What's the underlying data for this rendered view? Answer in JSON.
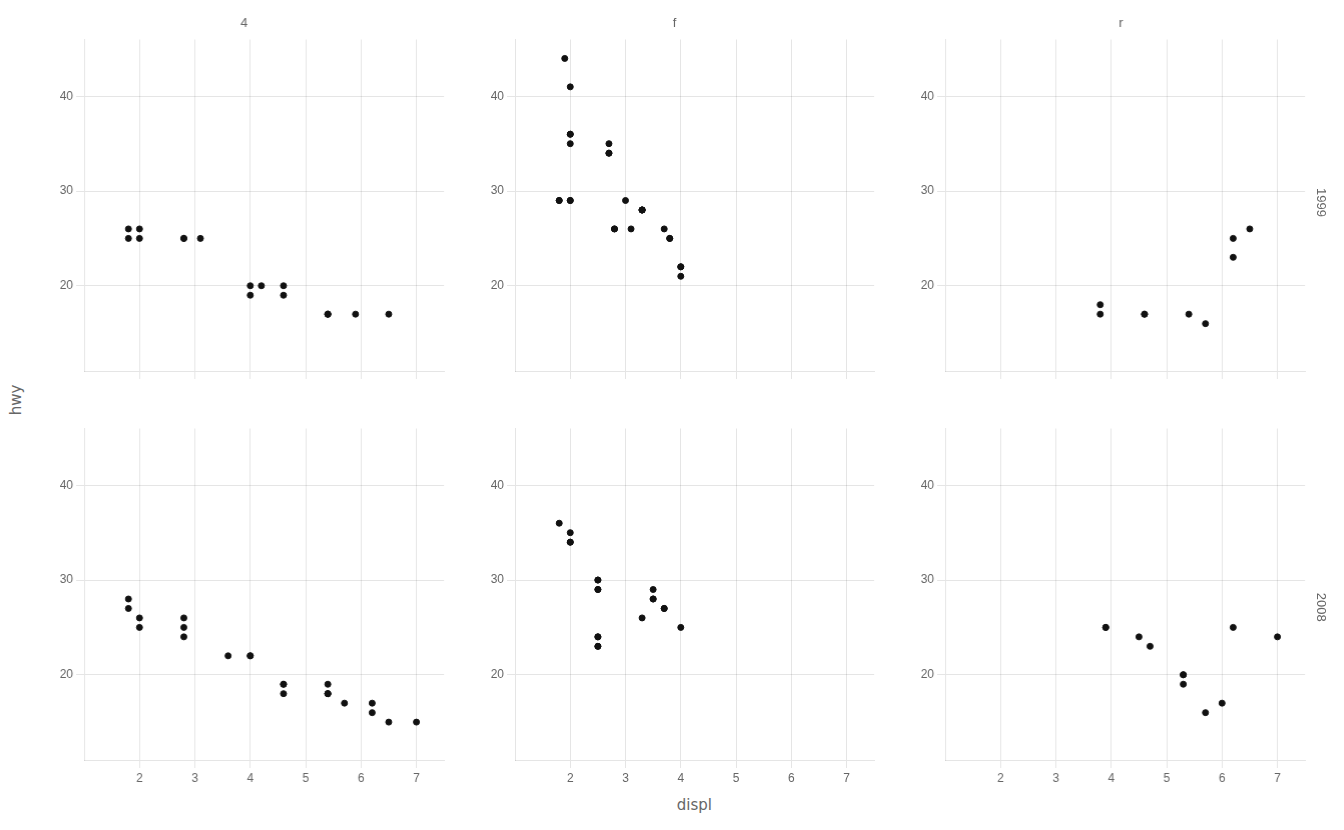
{
  "chart_data": [
    {
      "type": "scatter",
      "title": "4",
      "x": [
        1.8,
        1.8,
        2.0,
        2.0,
        2.8,
        2.8,
        3.1,
        4.2,
        5.9,
        4.0,
        4.0,
        4.6,
        4.6,
        5.4,
        5.4,
        5.4,
        6.5
      ],
      "values": [
        26,
        25,
        26,
        25,
        25,
        25,
        25,
        20,
        17,
        20,
        19,
        19,
        20,
        17,
        17,
        17,
        17
      ],
      "color": "#111111",
      "xlim": [
        1.0,
        7.5
      ],
      "ylim": [
        11,
        46
      ],
      "xticks": [
        2,
        3,
        4,
        5,
        6,
        7
      ],
      "yticks": [
        20,
        30,
        40
      ],
      "grid": true,
      "tick_labels": "y",
      "ylabel": "hwy"
    },
    {
      "type": "scatter",
      "title": "f",
      "x": [
        1.8,
        1.8,
        2.0,
        2.0,
        2.8,
        2.8,
        3.1,
        1.9,
        2.0,
        2.0,
        2.0,
        2.0,
        2.7,
        2.7,
        2.7,
        3.0,
        3.7,
        4.0,
        4.0,
        3.3,
        3.3,
        3.3,
        3.3,
        3.8,
        3.8,
        4.0
      ],
      "values": [
        29,
        29,
        29,
        29,
        26,
        26,
        26,
        44,
        41,
        36,
        36,
        35,
        35,
        34,
        34,
        29,
        26,
        22,
        21,
        28,
        28,
        28,
        28,
        25,
        25,
        22
      ],
      "color": "#111111",
      "xlim": [
        1.0,
        7.5
      ],
      "ylim": [
        11,
        46
      ],
      "xticks": [
        2,
        3,
        4,
        5,
        6,
        7
      ],
      "yticks": [
        20,
        30,
        40
      ],
      "grid": true,
      "tick_labels": "y"
    },
    {
      "type": "scatter",
      "title": "r",
      "subtitle": "1999",
      "x": [
        3.8,
        3.8,
        4.6,
        4.6,
        5.4,
        5.7,
        6.2,
        6.2,
        6.5
      ],
      "values": [
        18,
        17,
        17,
        17,
        17,
        16,
        23,
        25,
        26
      ],
      "color": "#111111",
      "xlim": [
        1.0,
        7.5
      ],
      "ylim": [
        11,
        46
      ],
      "xticks": [
        2,
        3,
        4,
        5,
        6,
        7
      ],
      "yticks": [
        20,
        30,
        40
      ],
      "grid": true,
      "tick_labels": "y"
    },
    {
      "type": "scatter",
      "x": [
        1.8,
        1.8,
        2.0,
        2.0,
        2.8,
        2.8,
        2.8,
        3.6,
        4.0,
        4.0,
        4.6,
        4.6,
        4.6,
        5.4,
        5.4,
        5.4,
        5.4,
        5.7,
        6.2,
        6.2,
        6.5,
        7.0
      ],
      "values": [
        28,
        27,
        26,
        25,
        25,
        26,
        24,
        22,
        22,
        22,
        19,
        19,
        18,
        18,
        18,
        19,
        18,
        17,
        17,
        16,
        15,
        15
      ],
      "color": "#111111",
      "xlim": [
        1.0,
        7.5
      ],
      "ylim": [
        11,
        46
      ],
      "xticks": [
        2,
        3,
        4,
        5,
        6,
        7
      ],
      "yticks": [
        20,
        30,
        40
      ],
      "grid": true
    },
    {
      "type": "scatter",
      "x": [
        1.8,
        2.0,
        2.0,
        2.0,
        2.5,
        2.5,
        2.5,
        2.5,
        3.3,
        3.5,
        3.5,
        3.5,
        3.7,
        3.7,
        4.0,
        2.5,
        2.5,
        2.5,
        2.5
      ],
      "values": [
        36,
        35,
        34,
        34,
        29,
        29,
        30,
        30,
        26,
        29,
        28,
        28,
        27,
        27,
        25,
        24,
        23,
        23,
        24
      ],
      "color": "#111111",
      "xlim": [
        1.0,
        7.5
      ],
      "ylim": [
        11,
        46
      ],
      "xticks": [
        2,
        3,
        4,
        5,
        6,
        7
      ],
      "yticks": [
        20,
        30,
        40
      ],
      "grid": true,
      "xlabel": "displ"
    },
    {
      "type": "scatter",
      "subtitle": "2008",
      "x": [
        3.9,
        3.9,
        4.5,
        4.7,
        5.3,
        5.3,
        5.3,
        5.7,
        6.0,
        6.2,
        7.0
      ],
      "values": [
        25,
        25,
        24,
        23,
        20,
        20,
        19,
        16,
        17,
        25,
        24
      ],
      "color": "#111111",
      "xlim": [
        1.0,
        7.5
      ],
      "ylim": [
        11,
        46
      ],
      "xticks": [
        2,
        3,
        4,
        5,
        6,
        7
      ],
      "yticks": [
        20,
        30,
        40
      ],
      "grid": true
    }
  ]
}
